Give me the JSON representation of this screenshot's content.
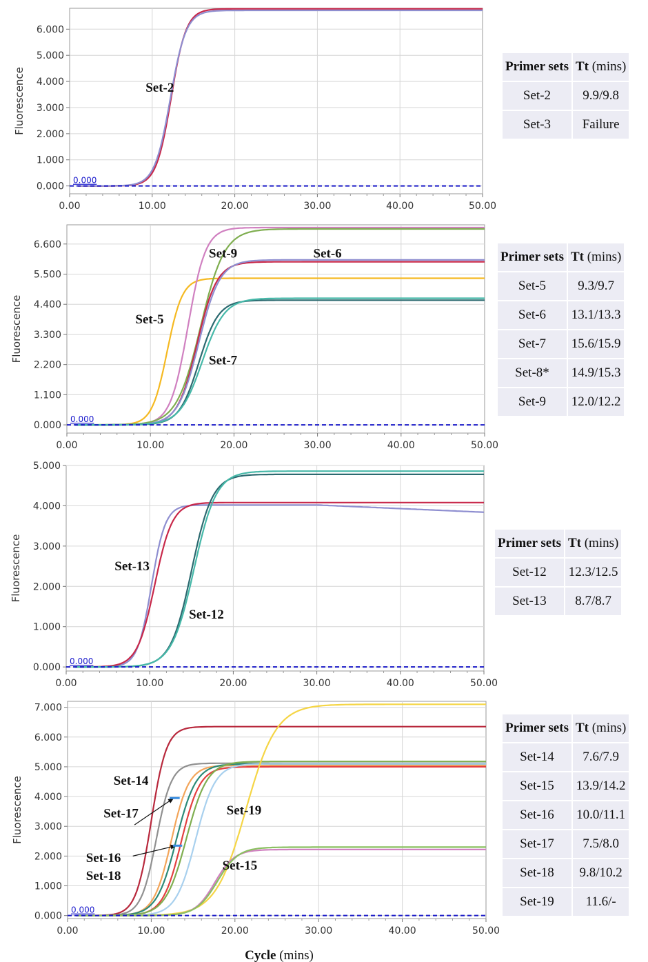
{
  "x_axis_title": {
    "bold": "Cycle",
    "rest": " (mins)"
  },
  "chart_data": [
    {
      "type": "line",
      "ylabel": "Fluorescence",
      "xlim": [
        0,
        50
      ],
      "ylim": [
        -0.3,
        6.8
      ],
      "xticks": [
        "0.00",
        "10.00",
        "20.00",
        "30.00",
        "40.00",
        "50.00"
      ],
      "yticks": [
        [
          0,
          "0.000"
        ],
        [
          1,
          "1.000"
        ],
        [
          2,
          "2.000"
        ],
        [
          3,
          "3.000"
        ],
        [
          4,
          "4.000"
        ],
        [
          5,
          "5.000"
        ],
        [
          6,
          "6.000"
        ]
      ],
      "baseline_label": "0.000",
      "series": [
        {
          "color": "#c8284a",
          "plateau": 6.78,
          "mid": 12.3,
          "k": 1.1
        },
        {
          "color": "#8e8ed0",
          "plateau": 6.72,
          "mid": 12.2,
          "k": 1.05
        }
      ],
      "labels": [
        {
          "text": "Set-2",
          "x": 9.2,
          "y": 3.6
        }
      ],
      "table": {
        "headers": [
          "Primer sets",
          "Tt",
          " (mins)"
        ],
        "rows": [
          [
            "Set-2",
            "9.9/9.8"
          ],
          [
            "Set-3",
            "Failure"
          ]
        ]
      }
    },
    {
      "type": "line",
      "ylabel": "Fluorescence",
      "xlim": [
        0,
        50
      ],
      "ylim": [
        -0.3,
        7.3
      ],
      "xticks": [
        "0.00",
        "10.00",
        "20.00",
        "30.00",
        "40.00",
        "50.00"
      ],
      "yticks": [
        [
          0,
          "0.000"
        ],
        [
          1.1,
          "1.100"
        ],
        [
          2.2,
          "2.200"
        ],
        [
          3.3,
          "3.300"
        ],
        [
          4.4,
          "4.400"
        ],
        [
          5.5,
          "5.500"
        ],
        [
          6.6,
          "6.600"
        ]
      ],
      "baseline_label": "0.000",
      "series": [
        {
          "color": "#f5b921",
          "plateau": 5.35,
          "mid": 12.0,
          "k": 1.1
        },
        {
          "color": "#d080c0",
          "plateau": 7.2,
          "mid": 14.5,
          "k": 0.95
        },
        {
          "color": "#7fae50",
          "plateau": 7.15,
          "mid": 16.0,
          "k": 0.7
        },
        {
          "color": "#c8284a",
          "plateau": 5.95,
          "mid": 15.6,
          "k": 0.85
        },
        {
          "color": "#8e8ed0",
          "plateau": 6.02,
          "mid": 15.8,
          "k": 0.8
        },
        {
          "color": "#2c6a70",
          "plateau": 4.55,
          "mid": 15.8,
          "k": 0.85
        },
        {
          "color": "#45b8a8",
          "plateau": 4.62,
          "mid": 16.2,
          "k": 0.75
        }
      ],
      "labels": [
        {
          "text": "Set-9",
          "x": 17.0,
          "y": 6.1
        },
        {
          "text": "Set-6",
          "x": 29.5,
          "y": 6.1
        },
        {
          "text": "Set-5",
          "x": 8.2,
          "y": 3.7
        },
        {
          "text": "Set-7",
          "x": 17.0,
          "y": 2.2
        }
      ],
      "table": {
        "headers": [
          "Primer sets",
          "Tt",
          " (mins)"
        ],
        "rows": [
          [
            "Set-5",
            "9.3/9.7"
          ],
          [
            "Set-6",
            "13.1/13.3"
          ],
          [
            "Set-7",
            "15.6/15.9"
          ],
          [
            "Set-8*",
            "14.9/15.3"
          ],
          [
            "Set-9",
            "12.0/12.2"
          ]
        ]
      }
    },
    {
      "type": "line",
      "ylabel": "Fluorescence",
      "xlim": [
        0,
        50
      ],
      "ylim": [
        -0.1,
        5.0
      ],
      "xticks": [
        "0.00",
        "10.00",
        "20.00",
        "30.00",
        "40.00",
        "50.00"
      ],
      "yticks": [
        [
          0,
          "0.000"
        ],
        [
          1,
          "1.000"
        ],
        [
          2,
          "2.000"
        ],
        [
          3,
          "3.000"
        ],
        [
          4,
          "4.000"
        ],
        [
          5,
          "5.000"
        ]
      ],
      "baseline_label": "0.000",
      "series": [
        {
          "color": "#8e8ed0",
          "plateau": 4.02,
          "mid": 10.2,
          "k": 1.2,
          "drift": -0.18
        },
        {
          "color": "#c8284a",
          "plateau": 4.08,
          "mid": 10.6,
          "k": 0.95
        },
        {
          "color": "#2c6a70",
          "plateau": 4.78,
          "mid": 15.0,
          "k": 0.8
        },
        {
          "color": "#45b8a8",
          "plateau": 4.86,
          "mid": 15.3,
          "k": 0.75
        }
      ],
      "labels": [
        {
          "text": "Set-13",
          "x": 5.8,
          "y": 2.4
        },
        {
          "text": "Set-12",
          "x": 14.7,
          "y": 1.2
        }
      ],
      "table": {
        "headers": [
          "Primer sets",
          "Tt",
          " (mins)"
        ],
        "rows": [
          [
            "Set-12",
            "12.3/12.5"
          ],
          [
            "Set-13",
            "8.7/8.7"
          ]
        ]
      }
    },
    {
      "type": "line",
      "ylabel": "Fluorescence",
      "xlim": [
        0,
        50
      ],
      "ylim": [
        -0.1,
        7.2
      ],
      "xticks": [
        "0.00",
        "10.00",
        "20.00",
        "30.00",
        "40.00",
        "50.00"
      ],
      "yticks": [
        [
          0,
          "0.000"
        ],
        [
          1,
          "1.000"
        ],
        [
          2,
          "2.000"
        ],
        [
          3,
          "3.000"
        ],
        [
          4,
          "4.000"
        ],
        [
          5,
          "5.000"
        ],
        [
          6,
          "6.000"
        ],
        [
          7,
          "7.000"
        ]
      ],
      "baseline_label": "0.000",
      "series": [
        {
          "color": "#b8283c",
          "plateau": 6.35,
          "mid": 10.0,
          "k": 1.1
        },
        {
          "color": "#909090",
          "plateau": 5.12,
          "mid": 10.6,
          "k": 1.1
        },
        {
          "color": "#f3a55a",
          "plateau": 5.05,
          "mid": 12.4,
          "k": 0.95
        },
        {
          "color": "#e34040",
          "plateau": 5.0,
          "mid": 13.6,
          "k": 0.9
        },
        {
          "color": "#2c8a78",
          "plateau": 5.1,
          "mid": 13.0,
          "k": 0.85
        },
        {
          "color": "#7fae50",
          "plateau": 5.18,
          "mid": 14.2,
          "k": 0.8
        },
        {
          "color": "#a8d0ee",
          "plateau": 5.1,
          "mid": 15.3,
          "k": 0.85
        },
        {
          "color": "#f5d545",
          "plateau": 7.1,
          "mid": 21.3,
          "k": 0.55
        },
        {
          "color": "#d080c0",
          "plateau": 2.22,
          "mid": 17.6,
          "k": 0.85
        },
        {
          "color": "#8ac060",
          "plateau": 2.3,
          "mid": 17.9,
          "k": 0.8
        }
      ],
      "labels": [
        {
          "text": "Set-14",
          "x": 5.5,
          "y": 4.4
        },
        {
          "text": "Set-17",
          "x": 4.3,
          "y": 3.3
        },
        {
          "text": "Set-19",
          "x": 19.0,
          "y": 3.4
        },
        {
          "text": "Set-16",
          "x": 2.2,
          "y": 1.8
        },
        {
          "text": "Set-18",
          "x": 2.2,
          "y": 1.2
        },
        {
          "text": "Set-15",
          "x": 18.5,
          "y": 1.55
        }
      ],
      "table": {
        "headers": [
          "Primer sets",
          "Tt",
          " (mins)"
        ],
        "rows": [
          [
            "Set-14",
            "7.6/7.9"
          ],
          [
            "Set-15",
            "13.9/14.2"
          ],
          [
            "Set-16",
            "10.0/11.1"
          ],
          [
            "Set-17",
            "7.5/8.0"
          ],
          [
            "Set-18",
            "9.8/10.2"
          ],
          [
            "Set-19",
            "11.6/-"
          ]
        ]
      }
    }
  ]
}
